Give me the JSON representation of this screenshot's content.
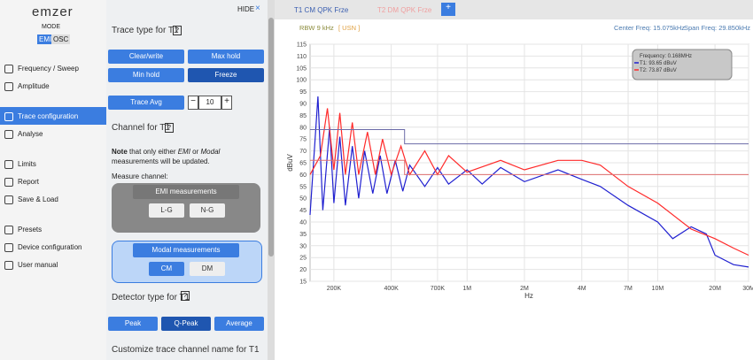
{
  "sidebar": {
    "logo": "emzer",
    "mode_label": "MODE",
    "modes": [
      "EMI",
      "OSC"
    ],
    "menu": [
      "Frequency / Sweep",
      "Amplitude",
      "Trace configuration",
      "Analyse",
      "Limits",
      "Report",
      "Save & Load",
      "Presets",
      "Device configuration",
      "User manual"
    ]
  },
  "panel": {
    "hide": "HIDE",
    "close": "×",
    "trace_type_title": "Trace type for T1",
    "help": "?",
    "trace_types": [
      "Clear/write",
      "Max hold",
      "Min hold",
      "Freeze"
    ],
    "trace_avg_label": "Trace Avg",
    "minus": "−",
    "trace_avg_value": "10",
    "plus": "+",
    "channel_title": "Channel for T1",
    "note_bold": "Note",
    "note_1": " that only either ",
    "note_emi": "EMI",
    "note_2": " or ",
    "note_modal": "Modal",
    "note_3": " measurements will be updated.",
    "measure_channel": "Measure channel:",
    "emi_title": "EMI measurements",
    "emi_channels": [
      "L-G",
      "N-G"
    ],
    "modal_title": "Modal measurements",
    "modal_channels": [
      "CM",
      "DM"
    ],
    "detector_title": "Detector type for T1",
    "detectors": [
      "Peak",
      "Q-Peak",
      "Average"
    ],
    "customize_title": "Customize trace channel name for T1"
  },
  "tabs": [
    "T1 CM QPK Frze",
    "T2 DM QPK Frze",
    "+"
  ],
  "chart_data": {
    "type": "line",
    "rbw": "RBW 9 kHz",
    "unit_tag": "[ USN ]",
    "center_freq": "Center Freq: 15.075kHz",
    "span_freq": "Span Freq: 29.850kHz",
    "y_label": "dBuV",
    "x_label": "Hz",
    "log_x": true,
    "grid": true,
    "readout": [
      "Frequency: 0.168MHz",
      "T1: 93.65 dBuV",
      "T2: 73.87 dBuV"
    ],
    "xlim": [
      150000,
      30000000
    ],
    "ylim": [
      15,
      115
    ],
    "xticks": [
      {
        "value": 200000,
        "label": "200K"
      },
      {
        "value": 400000,
        "label": "400K"
      },
      {
        "value": 700000,
        "label": "700K"
      },
      {
        "value": 1000000,
        "label": "1M"
      },
      {
        "value": 2000000,
        "label": "2M"
      },
      {
        "value": 4000000,
        "label": "4M"
      },
      {
        "value": 7000000,
        "label": "7M"
      },
      {
        "value": 10000000,
        "label": "10M"
      },
      {
        "value": 20000000,
        "label": "20M"
      },
      {
        "value": 30000000,
        "label": "30M"
      }
    ],
    "yticks": [
      15,
      20,
      25,
      30,
      35,
      40,
      45,
      50,
      55,
      60,
      65,
      70,
      75,
      80,
      85,
      90,
      95,
      100,
      105,
      110,
      115
    ],
    "series": [
      {
        "name": "T1",
        "color": "#2020d0",
        "x": [
          150000,
          165000,
          175000,
          190000,
          200000,
          215000,
          230000,
          250000,
          270000,
          290000,
          320000,
          350000,
          380000,
          420000,
          460000,
          500000,
          600000,
          700000,
          800000,
          1000000,
          1200000,
          1500000,
          2000000,
          3000000,
          4000000,
          5000000,
          7000000,
          10000000,
          12000000,
          15000000,
          18000000,
          20000000,
          25000000,
          30000000
        ],
        "values": [
          43,
          93,
          45,
          80,
          48,
          76,
          47,
          72,
          50,
          70,
          52,
          68,
          52,
          66,
          53,
          64,
          55,
          63,
          56,
          62,
          56,
          63,
          57,
          62,
          58,
          55,
          47,
          40,
          33,
          38,
          35,
          26,
          22,
          21
        ]
      },
      {
        "name": "T2",
        "color": "#ff2a2a",
        "x": [
          150000,
          170000,
          185000,
          200000,
          215000,
          230000,
          250000,
          270000,
          300000,
          330000,
          360000,
          400000,
          450000,
          500000,
          600000,
          700000,
          800000,
          1000000,
          1500000,
          2000000,
          3000000,
          4000000,
          5000000,
          7000000,
          10000000,
          15000000,
          20000000,
          25000000,
          30000000
        ],
        "values": [
          60,
          68,
          88,
          62,
          86,
          60,
          82,
          60,
          78,
          60,
          75,
          60,
          72,
          60,
          70,
          60,
          68,
          61,
          66,
          62,
          66,
          66,
          64,
          55,
          48,
          37,
          33,
          29,
          26
        ]
      },
      {
        "name": "Limit T1",
        "color": "#6b6ba8",
        "x": [
          150000,
          470000,
          470000,
          30000000
        ],
        "values": [
          79,
          79,
          73,
          73
        ]
      },
      {
        "name": "Limit T2",
        "color": "#e07070",
        "x": [
          150000,
          470000,
          470000,
          30000000
        ],
        "values": [
          66,
          66,
          60,
          60
        ]
      }
    ]
  }
}
